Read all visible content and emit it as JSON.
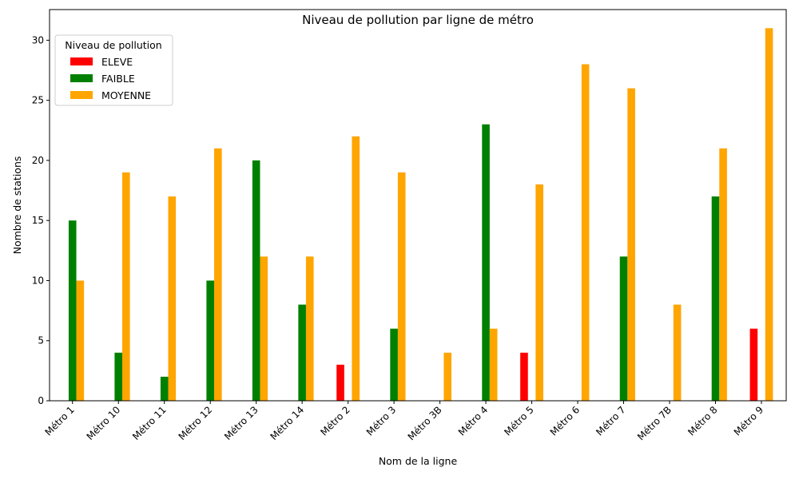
{
  "chart_data": {
    "type": "bar",
    "title": "Niveau de pollution par ligne de métro",
    "xlabel": "Nom de la ligne",
    "ylabel": "Nombre de stations",
    "categories": [
      "Métro 1",
      "Métro 10",
      "Métro 11",
      "Métro 12",
      "Métro 13",
      "Métro 14",
      "Métro 2",
      "Métro 3",
      "Métro 3B",
      "Métro 4",
      "Métro 5",
      "Métro 6",
      "Métro 7",
      "Métro 7B",
      "Métro 8",
      "Métro 9"
    ],
    "series": [
      {
        "name": "ELEVE",
        "color": "#ff0000",
        "values": [
          0,
          0,
          0,
          0,
          0,
          0,
          3,
          0,
          0,
          0,
          4,
          0,
          0,
          0,
          0,
          6
        ]
      },
      {
        "name": "FAIBLE",
        "color": "#008000",
        "values": [
          15,
          4,
          2,
          10,
          20,
          8,
          0,
          6,
          0,
          23,
          0,
          0,
          12,
          0,
          17,
          0
        ]
      },
      {
        "name": "MOYENNE",
        "color": "#ffa500",
        "values": [
          10,
          19,
          17,
          21,
          12,
          12,
          22,
          19,
          4,
          6,
          18,
          28,
          26,
          8,
          21,
          31
        ]
      }
    ],
    "ylim": [
      0,
      32.55
    ],
    "yticks": [
      0,
      5,
      10,
      15,
      20,
      25,
      30
    ],
    "grid": false,
    "legend": {
      "title": "Niveau de pollution",
      "position": "top-left"
    }
  }
}
